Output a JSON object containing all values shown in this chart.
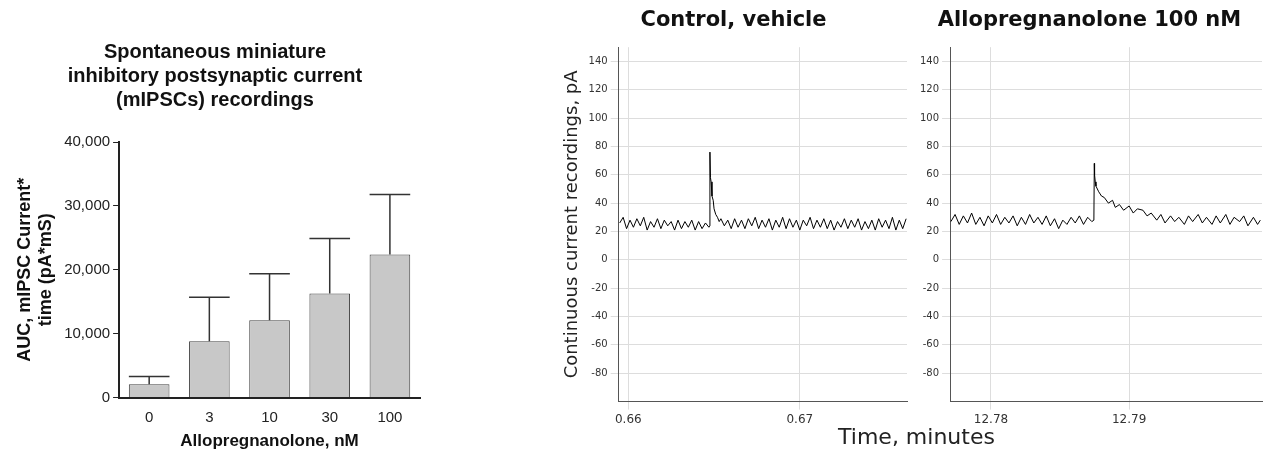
{
  "chart_data": [
    {
      "type": "bar",
      "title": "Spontaneous miniature\ninhibitory postsynaptic current\n(mIPSCs) recordings",
      "xlabel": "Allopregnanolone, nM",
      "ylabel": "AUC, mIPSC Current*\ntime (pA*mS)",
      "categories": [
        "0",
        "3",
        "10",
        "30",
        "100"
      ],
      "values": [
        2100,
        8800,
        12100,
        16300,
        22400
      ],
      "color": "#c8c8c8",
      "errors": [
        [
          2100,
          3300
        ],
        [
          8800,
          15700
        ],
        [
          12100,
          19400
        ],
        [
          16300,
          24900
        ],
        [
          22400,
          31800
        ]
      ],
      "ylim": [
        0,
        40000
      ],
      "yticks": [
        0,
        {
          "value": 10000,
          "label": "10,000"
        },
        {
          "value": 20000,
          "label": "20,000"
        },
        {
          "value": 30000,
          "label": "30,000"
        },
        {
          "value": 40000,
          "label": "40,000"
        }
      ],
      "grid": false
    },
    {
      "type": "line",
      "title": "Control, vehicle",
      "xlabel": "Time, minutes",
      "ylabel": "Continuous current recordings, pA",
      "marker": "none",
      "grid": true,
      "xlim": [
        0.65944,
        0.67625
      ],
      "xticks": [
        0.66,
        0.67
      ],
      "ylim": [
        -100,
        150
      ],
      "yticks": [
        -80,
        -60,
        -40,
        -20,
        0,
        20,
        40,
        60,
        80,
        100,
        120,
        140
      ],
      "series": [
        {
          "color": "#000000",
          "x": [
            0.6595,
            0.6597,
            0.6599,
            0.6601,
            0.6603,
            0.6605,
            0.6607,
            0.6609,
            0.6611,
            0.6613,
            0.6615,
            0.6617,
            0.6619,
            0.6621,
            0.6623,
            0.6625,
            0.6627,
            0.6629,
            0.6631,
            0.6633,
            0.6635,
            0.6637,
            0.6639,
            0.6641,
            0.6643,
            0.6645,
            0.6647,
            0.66475,
            0.66476,
            0.66479,
            0.66483,
            0.66488,
            0.66495,
            0.665,
            0.6651,
            0.6652,
            0.6653,
            0.6654,
            0.6656,
            0.6658,
            0.666,
            0.6662,
            0.6664,
            0.6666,
            0.6668,
            0.667,
            0.6672,
            0.6674,
            0.6676,
            0.6678,
            0.668,
            0.6682,
            0.6684,
            0.6686,
            0.6688,
            0.669,
            0.6692,
            0.6694,
            0.6696,
            0.6698,
            0.67,
            0.6702,
            0.6704,
            0.6706,
            0.6708,
            0.671,
            0.6712,
            0.6714,
            0.6716,
            0.6718,
            0.672,
            0.6722,
            0.6724,
            0.6726,
            0.6728,
            0.673,
            0.6732,
            0.6734,
            0.6736,
            0.6738,
            0.674,
            0.6742,
            0.6744,
            0.6746,
            0.6748,
            0.675,
            0.6752,
            0.6754,
            0.6756,
            0.6758,
            0.676,
            0.6762
          ],
          "values": [
            26,
            30,
            22,
            28,
            23,
            29,
            24,
            30,
            21,
            27,
            23,
            29,
            22,
            28,
            24,
            27,
            21,
            28,
            22,
            27,
            23,
            28,
            21,
            27,
            22,
            26,
            23,
            24,
            76,
            58,
            55,
            45,
            42,
            36,
            32,
            30,
            27,
            29,
            24,
            28,
            22,
            29,
            23,
            28,
            22,
            29,
            24,
            30,
            22,
            28,
            23,
            29,
            21,
            28,
            23,
            30,
            22,
            29,
            23,
            28,
            21,
            28,
            24,
            30,
            22,
            28,
            23,
            29,
            22,
            28,
            21,
            27,
            23,
            29,
            22,
            28,
            23,
            29,
            21,
            27,
            22,
            28,
            21,
            29,
            23,
            28,
            22,
            30,
            21,
            28,
            22,
            29
          ]
        }
      ]
    },
    {
      "type": "line",
      "title": "Allopregnanolone 100 nM",
      "marker": "none",
      "grid": true,
      "xlim": [
        12.77704,
        12.79962
      ],
      "xticks": [
        12.78,
        12.79
      ],
      "ylim": [
        -100,
        150
      ],
      "yticks": [
        -80,
        -60,
        -40,
        -20,
        0,
        20,
        40,
        60,
        80,
        100,
        120,
        140
      ],
      "series": [
        {
          "color": "#000000",
          "x": [
            12.7771,
            12.7774,
            12.7777,
            12.778,
            12.7783,
            12.7786,
            12.7789,
            12.7792,
            12.7795,
            12.7798,
            12.7801,
            12.7804,
            12.7807,
            12.781,
            12.7813,
            12.7816,
            12.7819,
            12.7822,
            12.7825,
            12.7828,
            12.7831,
            12.7834,
            12.7837,
            12.784,
            12.7843,
            12.7846,
            12.7849,
            12.7852,
            12.7855,
            12.7858,
            12.7861,
            12.7864,
            12.7867,
            12.787,
            12.7873,
            12.78745,
            12.78748,
            12.7875,
            12.78755,
            12.7876,
            12.7878,
            12.788,
            12.7882,
            12.7885,
            12.7888,
            12.789,
            12.7893,
            12.7896,
            12.79,
            12.7903,
            12.7906,
            12.791,
            12.7913,
            12.7916,
            12.792,
            12.7923,
            12.7926,
            12.793,
            12.7933,
            12.7936,
            12.794,
            12.7943,
            12.7946,
            12.795,
            12.7953,
            12.7956,
            12.796,
            12.7963,
            12.7966,
            12.797,
            12.7973,
            12.7976,
            12.798,
            12.7983,
            12.7986,
            12.799,
            12.7993,
            12.7995
          ],
          "values": [
            27,
            32,
            25,
            31,
            26,
            33,
            25,
            30,
            24,
            31,
            26,
            32,
            25,
            30,
            26,
            31,
            24,
            30,
            25,
            32,
            26,
            30,
            25,
            31,
            24,
            29,
            22,
            28,
            25,
            30,
            26,
            31,
            25,
            30,
            27,
            28,
            68,
            60,
            55,
            52,
            48,
            45,
            44,
            40,
            42,
            37,
            39,
            35,
            38,
            33,
            36,
            35,
            31,
            33,
            28,
            32,
            26,
            31,
            27,
            30,
            25,
            31,
            27,
            32,
            26,
            30,
            25,
            31,
            26,
            32,
            25,
            30,
            27,
            31,
            24,
            30,
            25,
            28
          ]
        }
      ]
    }
  ]
}
